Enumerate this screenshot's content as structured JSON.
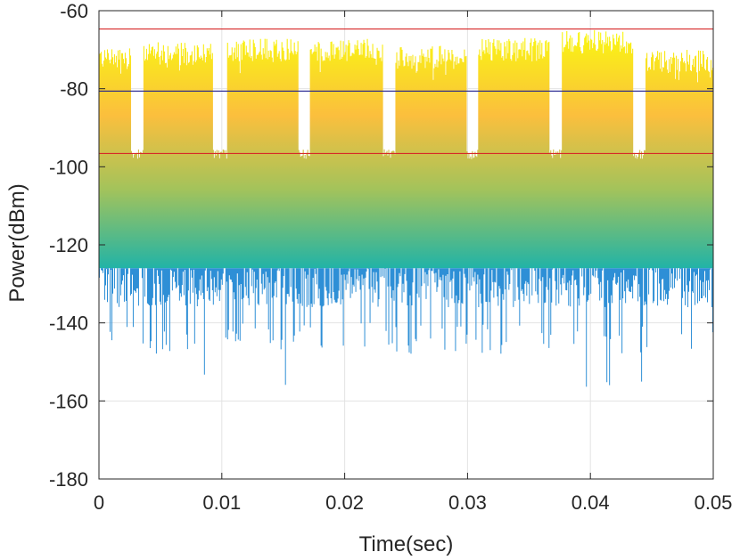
{
  "chart_data": {
    "type": "line",
    "title": "",
    "xlabel": "Time(sec)",
    "ylabel": "Power(dBm)",
    "xlim": [
      0,
      0.05
    ],
    "ylim": [
      -180,
      -60
    ],
    "xticks": [
      0,
      0.01,
      0.02,
      0.03,
      0.04,
      0.05
    ],
    "xtick_labels": [
      "0",
      "0.01",
      "0.02",
      "0.03",
      "0.04",
      "0.05"
    ],
    "yticks": [
      -180,
      -160,
      -140,
      -120,
      -100,
      -80,
      -60
    ],
    "ytick_labels": [
      "-180",
      "-160",
      "-140",
      "-120",
      "-100",
      "-80",
      "-60"
    ],
    "grid": true,
    "colormap": "parula (by value)",
    "reference_lines": [
      {
        "y": -64.7,
        "color": "#d62728"
      },
      {
        "y": -80.6,
        "color": "#1f1f8f"
      },
      {
        "y": -96.6,
        "color": "#d62728"
      }
    ],
    "signal": {
      "noise_floor_typical_range": [
        -136,
        -124
      ],
      "noise_dip_min": -159,
      "bursts": [
        {
          "start": 0.0,
          "end": 0.0026,
          "top": -72
        },
        {
          "start": 0.0036,
          "end": 0.0093,
          "top": -71
        },
        {
          "start": 0.0104,
          "end": 0.0162,
          "top": -70
        },
        {
          "start": 0.0172,
          "end": 0.0231,
          "top": -70
        },
        {
          "start": 0.0241,
          "end": 0.0299,
          "top": -72
        },
        {
          "start": 0.0309,
          "end": 0.0367,
          "top": -70
        },
        {
          "start": 0.0377,
          "end": 0.0435,
          "top": -68
        },
        {
          "start": 0.0445,
          "end": 0.05,
          "top": -73
        }
      ],
      "gap_min_level": -98
    }
  }
}
